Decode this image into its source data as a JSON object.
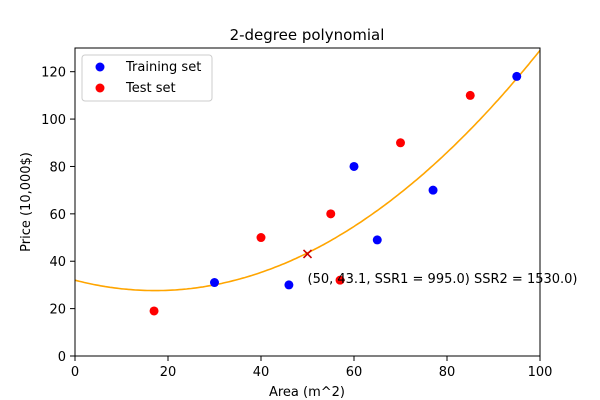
{
  "chart_data": {
    "type": "scatter",
    "title": "2-degree polynomial",
    "xlabel": "Area (m^2)",
    "ylabel": "Price (10,000$)",
    "xlim": [
      0,
      100
    ],
    "ylim": [
      0,
      130
    ],
    "xticks": [
      0,
      20,
      40,
      60,
      80,
      100
    ],
    "yticks": [
      0,
      20,
      40,
      60,
      80,
      100,
      120
    ],
    "grid": false,
    "legend_position": "top-left",
    "series": [
      {
        "name": "Training set",
        "color": "#0000ff",
        "marker": "circle",
        "x": [
          30,
          46,
          60,
          65,
          77,
          95
        ],
        "y": [
          31,
          30,
          80,
          49,
          70,
          118
        ]
      },
      {
        "name": "Test set",
        "color": "#ff0000",
        "marker": "circle",
        "x": [
          17,
          40,
          55,
          57,
          70,
          85
        ],
        "y": [
          19,
          50,
          60,
          32,
          90,
          110
        ]
      }
    ],
    "fit_curve": {
      "type": "polynomial",
      "degree": 2,
      "color": "#ffa500",
      "coefficients": [
        32.0,
        -0.51,
        0.0148
      ]
    },
    "highlight_point": {
      "x": 50,
      "y": 43.1,
      "marker": "x",
      "color": "#cc0000"
    },
    "annotation": {
      "text": "(50, 43.1, SSR1 = 995.0) SSR2 = 1530.0)",
      "x": 50,
      "y": 33
    }
  }
}
